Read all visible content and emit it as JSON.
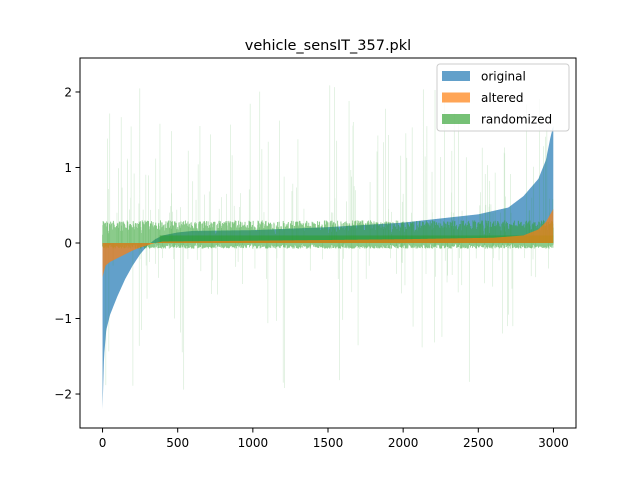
{
  "chart_data": {
    "type": "area",
    "title": "vehicle_sensIT_357.pkl",
    "xlabel": "",
    "ylabel": "",
    "xlim": [
      -150,
      3150
    ],
    "ylim": [
      -2.45,
      2.45
    ],
    "x_ticks": [
      0,
      500,
      1000,
      1500,
      2000,
      2500,
      3000
    ],
    "x_tick_labels": [
      "0",
      "500",
      "1000",
      "1500",
      "2000",
      "2500",
      "3000"
    ],
    "y_ticks": [
      2,
      1,
      0,
      -1,
      -2
    ],
    "y_tick_labels": [
      "2",
      "1",
      "0",
      "−1",
      "−2"
    ],
    "grid": false,
    "legend_position": "top-right",
    "n_points": 3000,
    "series": [
      {
        "name": "original",
        "color": "#1f77b4",
        "opacity": 0.7,
        "x": [
          0,
          10,
          25,
          50,
          100,
          150,
          200,
          250,
          300,
          350,
          400,
          500,
          600,
          1000,
          1500,
          2000,
          2500,
          2700,
          2800,
          2900,
          2950,
          2980,
          2999
        ],
        "values": [
          -2.2,
          -1.5,
          -1.15,
          -0.95,
          -0.7,
          -0.48,
          -0.3,
          -0.15,
          -0.03,
          0.05,
          0.1,
          0.14,
          0.16,
          0.17,
          0.21,
          0.27,
          0.38,
          0.47,
          0.62,
          0.85,
          1.1,
          1.4,
          1.55
        ]
      },
      {
        "name": "altered",
        "color": "#ff7f0e",
        "opacity": 0.7,
        "x": [
          0,
          20,
          50,
          100,
          150,
          200,
          250,
          300,
          350,
          400,
          1000,
          2000,
          2600,
          2800,
          2900,
          2950,
          2999
        ],
        "values": [
          -0.45,
          -0.3,
          -0.25,
          -0.2,
          -0.15,
          -0.1,
          -0.06,
          -0.03,
          0.0,
          0.02,
          0.03,
          0.05,
          0.07,
          0.1,
          0.18,
          0.28,
          0.45
        ]
      },
      {
        "name": "randomized",
        "color": "#2ca02c",
        "opacity": 0.65,
        "x": [
          0,
          3000
        ],
        "values": [
          0,
          0
        ],
        "band_core": 0.3,
        "spike_max": 2.1,
        "spike_min": -1.95
      }
    ]
  }
}
